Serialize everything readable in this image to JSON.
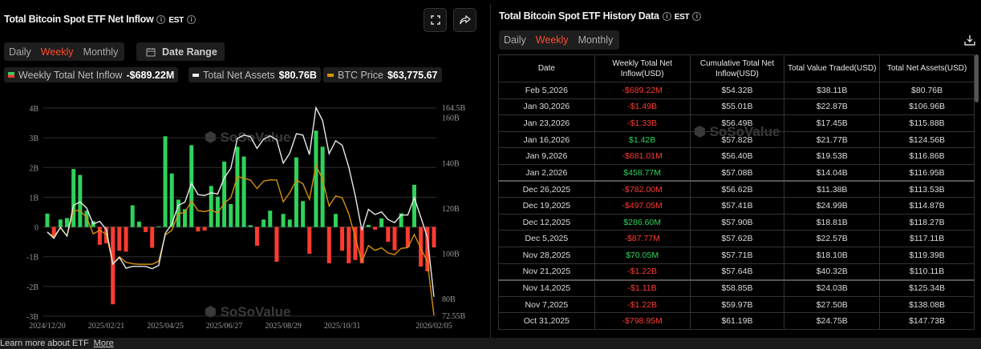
{
  "left": {
    "title": "Total Bitcoin Spot ETF Net Inflow",
    "timezone": "EST",
    "tabs": [
      "Daily",
      "Weekly",
      "Monthly"
    ],
    "active_tab": "Weekly",
    "date_range_label": "Date Range",
    "legend": {
      "inflow_label": "Weekly Total Net Inflow",
      "inflow_value": "-$689.22M",
      "assets_label": "Total Net Assets",
      "assets_value": "$80.76B",
      "price_label": "BTC Price",
      "price_value": "$63,775.67"
    },
    "watermark": "SoSoValue"
  },
  "right": {
    "title": "Total Bitcoin Spot ETF History Data",
    "timezone": "EST",
    "tabs": [
      "Daily",
      "Weekly",
      "Monthly"
    ],
    "active_tab": "Weekly",
    "columns": [
      "Date",
      "Weekly Total Net Inflow(USD)",
      "Cumulative Total Net Inflow(USD)",
      "Total Value Traded(USD)",
      "Total Net Assets(USD)"
    ],
    "rows": [
      [
        "Feb 5,2026",
        "-$689.22M",
        "$54.32B",
        "$38.11B",
        "$80.76B"
      ],
      [
        "Jan 30,2026",
        "-$1.49B",
        "$55.01B",
        "$22.87B",
        "$106.96B"
      ],
      [
        "Jan 23,2026",
        "-$1.33B",
        "$56.49B",
        "$17.45B",
        "$115.88B"
      ],
      [
        "Jan 16,2026",
        "$1.42B",
        "$57.82B",
        "$21.77B",
        "$124.56B"
      ],
      [
        "Jan 9,2026",
        "-$681.01M",
        "$56.40B",
        "$19.53B",
        "$116.86B"
      ],
      [
        "Jan 2,2026",
        "$458.77M",
        "$57.08B",
        "$14.04B",
        "$116.95B"
      ],
      [
        "Dec 26,2025",
        "-$782.00M",
        "$56.62B",
        "$11.38B",
        "$113.53B"
      ],
      [
        "Dec 19,2025",
        "-$497.05M",
        "$57.41B",
        "$24.99B",
        "$114.87B"
      ],
      [
        "Dec 12,2025",
        "$286.60M",
        "$57.90B",
        "$18.81B",
        "$118.27B"
      ],
      [
        "Dec 5,2025",
        "-$87.77M",
        "$57.62B",
        "$22.57B",
        "$117.11B"
      ],
      [
        "Nov 28,2025",
        "$70.05M",
        "$57.71B",
        "$18.10B",
        "$119.39B"
      ],
      [
        "Nov 21,2025",
        "-$1.22B",
        "$57.64B",
        "$40.32B",
        "$110.11B"
      ],
      [
        "Nov 14,2025",
        "-$1.11B",
        "$58.85B",
        "$24.03B",
        "$125.34B"
      ],
      [
        "Nov 7,2025",
        "-$1.22B",
        "$59.97B",
        "$27.50B",
        "$138.08B"
      ],
      [
        "Oct 31,2025",
        "-$798.95M",
        "$61.19B",
        "$24.75B",
        "$147.73B"
      ]
    ],
    "watermark": "SoSoValue"
  },
  "footer": {
    "text": "Learn more about ETF",
    "link": "More"
  },
  "colors": {
    "positive": "#2fd25a",
    "negative": "#ff3b30",
    "assets": "#e8e8e8",
    "price": "#d4900a",
    "accent": "#ff4d2e"
  },
  "chart_data": {
    "type": "bar+line",
    "title": "Total Bitcoin Spot ETF Net Inflow",
    "x_ticks": [
      {
        "label": "2024/12/20",
        "index": 0
      },
      {
        "label": "2025/02/21",
        "index": 9
      },
      {
        "label": "2025/04/25",
        "index": 18
      },
      {
        "label": "2025/06/27",
        "index": 27
      },
      {
        "label": "2025/08/29",
        "index": 36
      },
      {
        "label": "2025/10/31",
        "index": 45
      },
      {
        "label": "2026/02/05",
        "index": 59
      }
    ],
    "left_axis": {
      "unit": "B USD",
      "range": [
        -3,
        4
      ],
      "ticks": [
        "4B",
        "3B",
        "2B",
        "1B",
        "0",
        "-1B",
        "-2B",
        "-3B"
      ]
    },
    "right_axis": {
      "unit": "B USD",
      "range": [
        72.55,
        164.5
      ],
      "ticks": [
        {
          "v": 164.5,
          "label": "164.5B"
        },
        {
          "v": 160,
          "label": "160B"
        },
        {
          "v": 140,
          "label": "140B"
        },
        {
          "v": 120,
          "label": "120B"
        },
        {
          "v": 100,
          "label": "100B"
        },
        {
          "v": 80,
          "label": "80B"
        },
        {
          "v": 72.55,
          "label": "72.55B"
        }
      ]
    },
    "series": [
      {
        "name": "Weekly Total Net Inflow (B)",
        "type": "bar",
        "values": [
          0.45,
          -0.3,
          0.25,
          0.3,
          1.95,
          1.75,
          0.55,
          0.2,
          -0.6,
          -0.55,
          -2.6,
          -0.8,
          -0.83,
          0.73,
          0.18,
          -0.17,
          -0.7,
          0.02,
          3.05,
          1.8,
          0.92,
          0.6,
          2.75,
          -0.15,
          -0.12,
          1.38,
          1.02,
          2.2,
          0.77,
          2.7,
          2.37,
          0.06,
          -0.63,
          0.25,
          0.55,
          -1.17,
          0.44,
          0.25,
          2.34,
          0.87,
          -0.9,
          3.24,
          2.7,
          -1.22,
          0.44,
          -0.8,
          -1.22,
          -1.11,
          -1.22,
          0.07,
          -0.09,
          0.29,
          -0.5,
          -0.78,
          0.46,
          -0.68,
          1.42,
          -1.33,
          -1.49,
          -0.69
        ]
      },
      {
        "name": "Total Net Assets (B)",
        "type": "line",
        "values": [
          109.4,
          106.6,
          111.5,
          107.6,
          121.2,
          122.7,
          120,
          112.9,
          114.1,
          110.5,
          95.2,
          98.2,
          93.4,
          94.2,
          94.2,
          94.2,
          93.2,
          94.6,
          108.8,
          112.9,
          121.2,
          122.6,
          131,
          125.9,
          125.5,
          126.7,
          126.2,
          133.3,
          137.5,
          150.7,
          152.2,
          151.5,
          146.3,
          150.4,
          151.9,
          150.1,
          139.8,
          144.2,
          152.8,
          152.2,
          143.6,
          164.3,
          158.7,
          144,
          149.7,
          147.73,
          138.08,
          125.34,
          110.11,
          119.39,
          117.11,
          118.27,
          114.87,
          113.53,
          116.95,
          116.86,
          124.56,
          115.88,
          106.96,
          80.76
        ]
      },
      {
        "name": "BTC Price (USD thousands)",
        "type": "line",
        "values": [
          96.1,
          94.5,
          97.9,
          94.7,
          104.6,
          104.6,
          102,
          95.6,
          96.9,
          95.3,
          83.9,
          86.6,
          84.5,
          83.9,
          83.7,
          83.7,
          83.7,
          84.9,
          95.1,
          96.9,
          103.4,
          103.9,
          108.4,
          104.6,
          104.2,
          104.9,
          103.6,
          107.5,
          109.6,
          117.9,
          117.2,
          116.5,
          113.2,
          116.1,
          116.6,
          116.5,
          108,
          111.6,
          116.5,
          115.1,
          109,
          122.2,
          116.8,
          106.4,
          110.3,
          109.6,
          103.4,
          94,
          84.7,
          91,
          89.1,
          90.1,
          88.1,
          87.5,
          89.9,
          90.2,
          95.3,
          89.9,
          84.7,
          63.776
        ]
      }
    ]
  }
}
